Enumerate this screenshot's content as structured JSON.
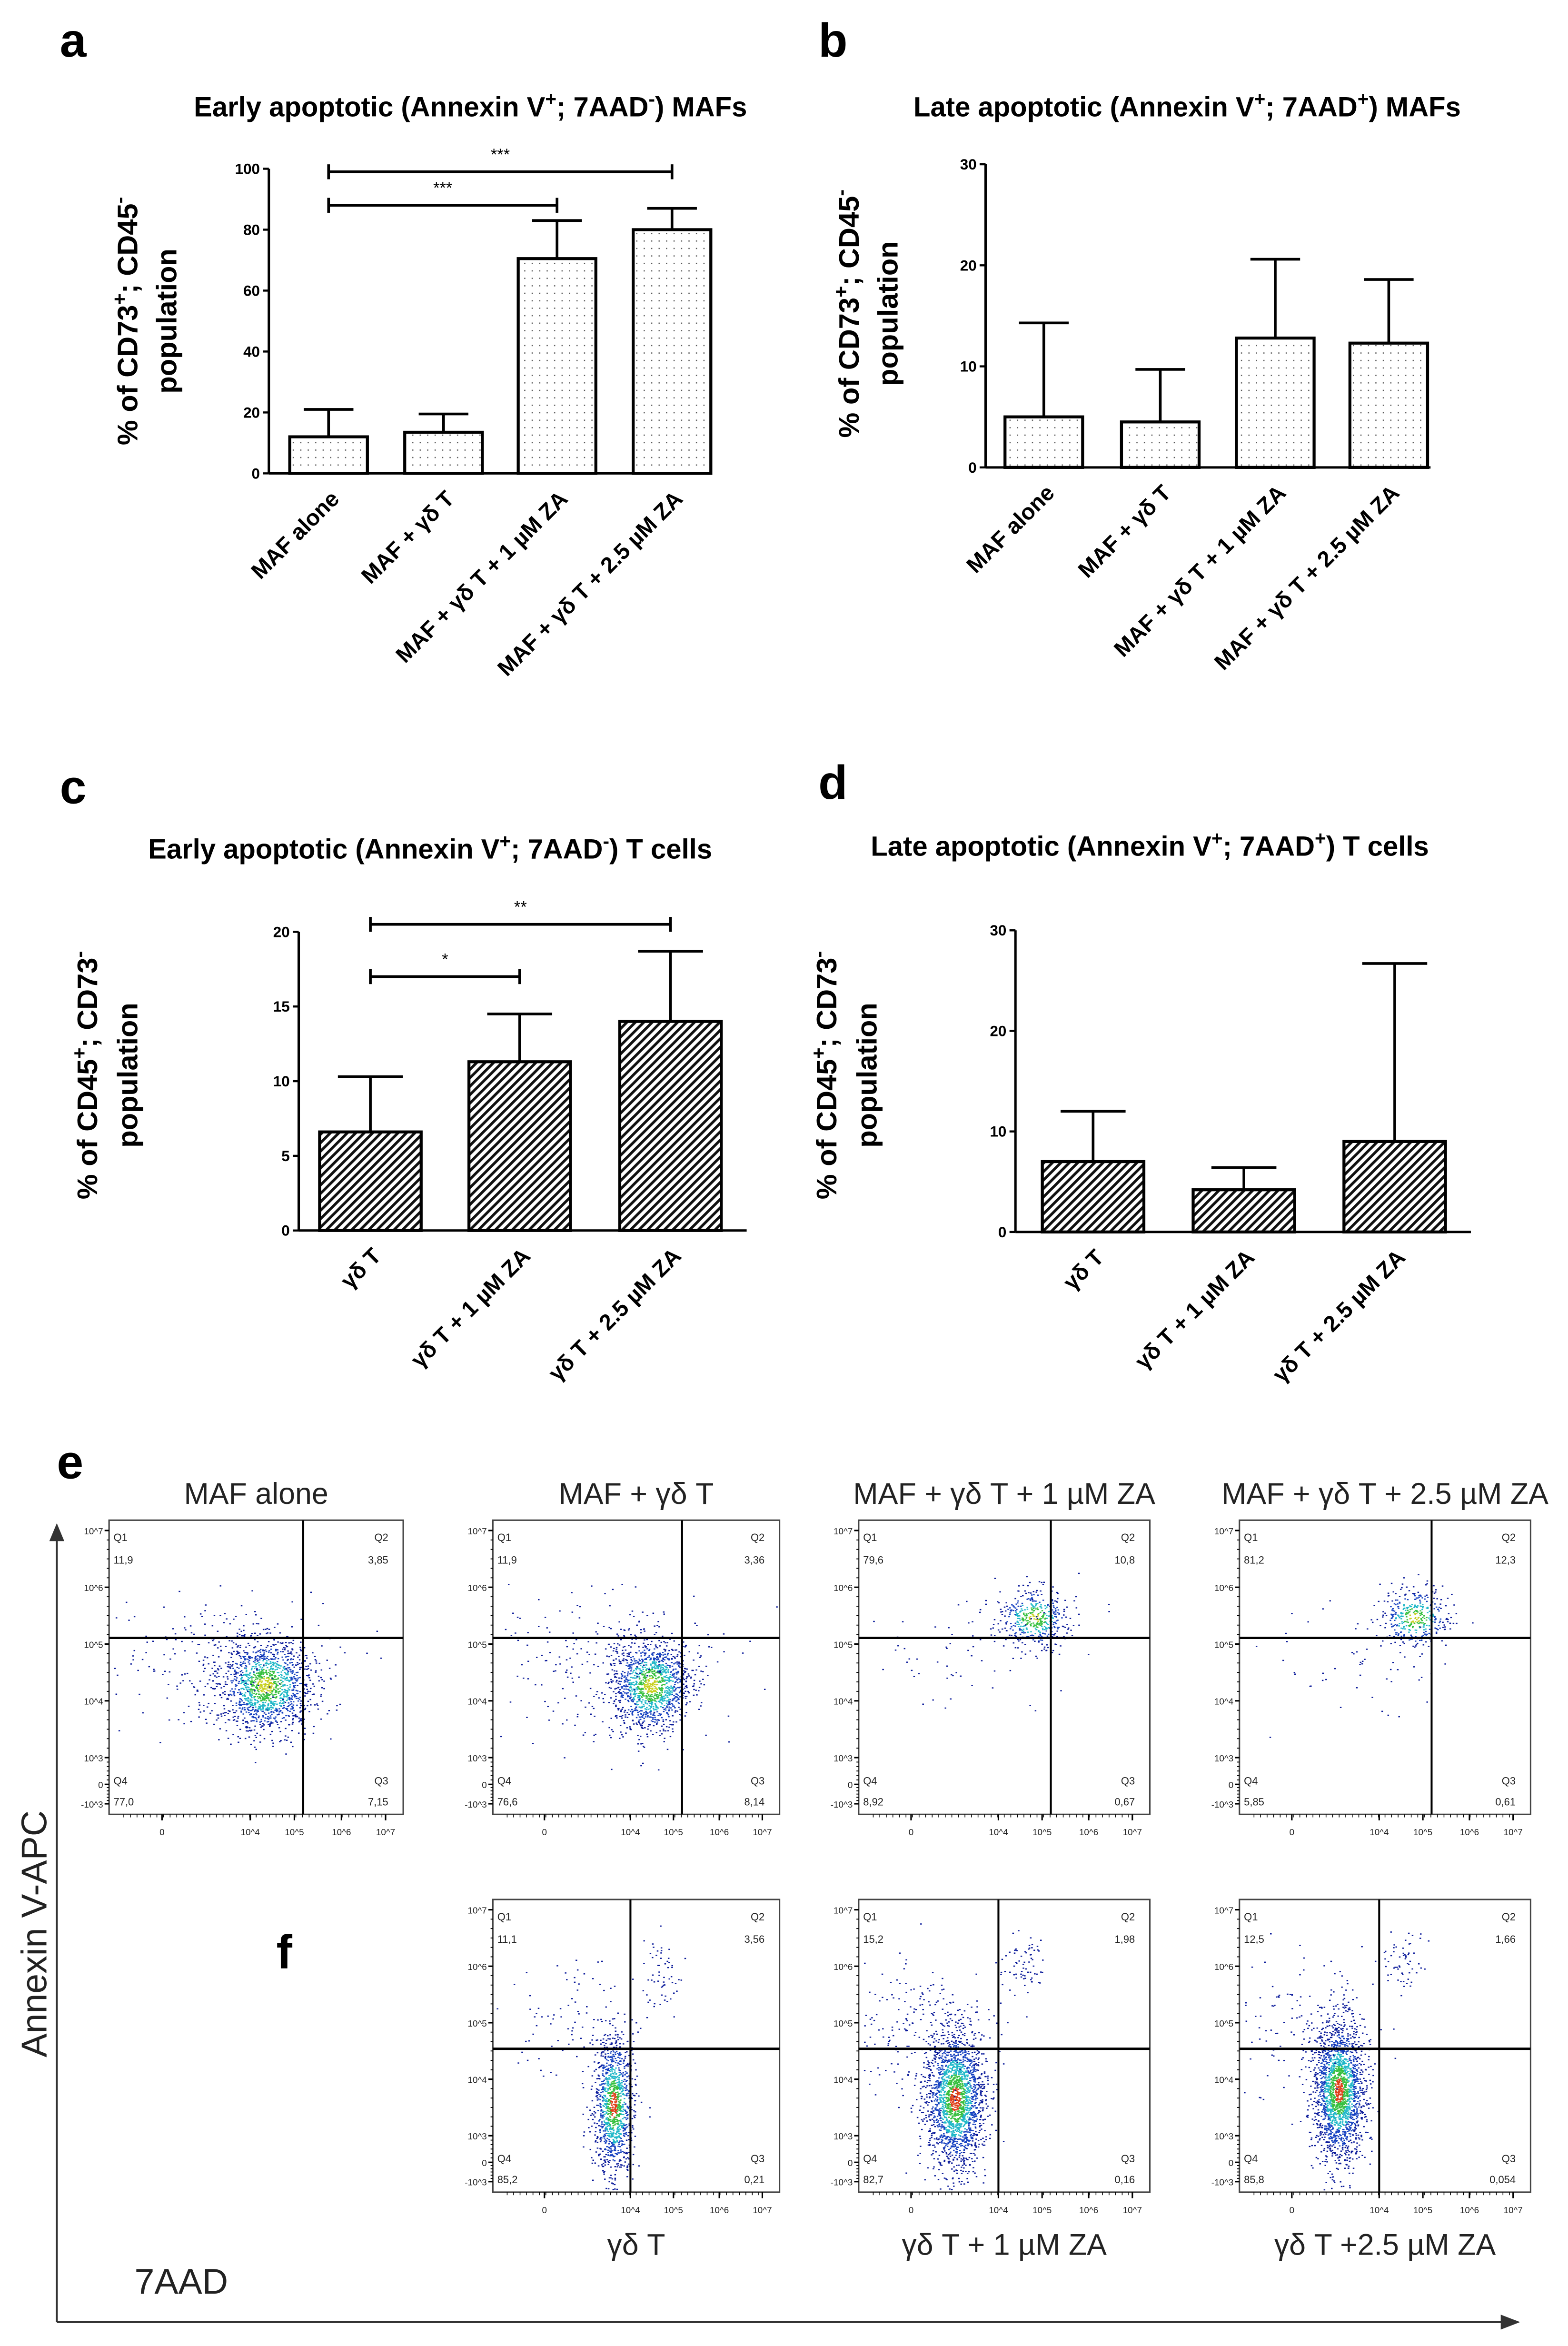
{
  "chart_data": [
    {
      "panel": "a",
      "type": "bar",
      "title": [
        {
          "t": "Early apoptotic (Annexin V"
        },
        {
          "t": "+",
          "sup": true
        },
        {
          "t": "; 7AAD"
        },
        {
          "t": "-",
          "sup": true
        },
        {
          "t": ") MAFs"
        }
      ],
      "ylabel": [
        [
          {
            "t": "% of  CD73"
          },
          {
            "t": "+",
            "sup": true
          },
          {
            "t": "; CD45"
          },
          {
            "t": "-",
            "sup": true
          }
        ],
        [
          {
            "t": "population"
          }
        ]
      ],
      "categories": [
        "MAF alone",
        "MAF + γδ T",
        "MAF + γδ T + 1 µM ZA",
        "MAF + γδ T + 2.5 µM ZA"
      ],
      "values": [
        12,
        13.5,
        70.5,
        80
      ],
      "error_upper": [
        21,
        19.5,
        83,
        87
      ],
      "ylim": [
        0,
        100
      ],
      "yticks": [
        "0",
        "20",
        "40",
        "60",
        "80",
        "100"
      ],
      "pattern": "dots",
      "significance": [
        {
          "from": 0,
          "to": 2,
          "label": "***",
          "level": 88
        },
        {
          "from": 0,
          "to": 3,
          "label": "***",
          "level": 99
        }
      ]
    },
    {
      "panel": "b",
      "type": "bar",
      "title": [
        {
          "t": "Late apoptotic (Annexin V"
        },
        {
          "t": "+",
          "sup": true
        },
        {
          "t": "; 7AAD"
        },
        {
          "t": "+",
          "sup": true
        },
        {
          "t": ") MAFs"
        }
      ],
      "ylabel": [
        [
          {
            "t": "% of  CD73"
          },
          {
            "t": "+",
            "sup": true
          },
          {
            "t": "; CD45"
          },
          {
            "t": "-",
            "sup": true
          }
        ],
        [
          {
            "t": "population"
          }
        ]
      ],
      "categories": [
        "MAF alone",
        "MAF + γδ T",
        "MAF + γδ T + 1 µM ZA",
        "MAF + γδ T + 2.5 µM ZA"
      ],
      "values": [
        5,
        4.5,
        12.8,
        12.3
      ],
      "error_upper": [
        14.3,
        9.7,
        20.6,
        18.6
      ],
      "ylim": [
        0,
        30
      ],
      "yticks": [
        "0",
        "10",
        "20",
        "30"
      ],
      "pattern": "dots",
      "significance": []
    },
    {
      "panel": "c",
      "type": "bar",
      "title": [
        {
          "t": "Early apoptotic (Annexin  V"
        },
        {
          "t": "+",
          "sup": true
        },
        {
          "t": "; 7AAD"
        },
        {
          "t": "-",
          "sup": true
        },
        {
          "t": ") T cells"
        }
      ],
      "ylabel": [
        [
          {
            "t": "% of CD45"
          },
          {
            "t": "+",
            "sup": true
          },
          {
            "t": "; CD73"
          },
          {
            "t": "-",
            "sup": true
          }
        ],
        [
          {
            "t": "population"
          }
        ]
      ],
      "categories": [
        "γδ T",
        "γδ T + 1 µM ZA",
        "γδ T + 2.5 µM ZA"
      ],
      "values": [
        6.6,
        11.3,
        14
      ],
      "error_upper": [
        10.3,
        14.5,
        18.7
      ],
      "ylim": [
        0,
        20
      ],
      "yticks": [
        "0",
        "5",
        "10",
        "15",
        "20"
      ],
      "pattern": "hatch",
      "significance": [
        {
          "from": 0,
          "to": 1,
          "label": "*",
          "level": 17
        },
        {
          "from": 0,
          "to": 2,
          "label": "**",
          "level": 20.5
        }
      ]
    },
    {
      "panel": "d",
      "type": "bar",
      "title": [
        {
          "t": "Late apoptotic (Annexin V"
        },
        {
          "t": "+",
          "sup": true
        },
        {
          "t": "; 7AAD"
        },
        {
          "t": "+",
          "sup": true
        },
        {
          "t": ") T cells"
        }
      ],
      "ylabel": [
        [
          {
            "t": "% of CD45"
          },
          {
            "t": "+",
            "sup": true
          },
          {
            "t": "; CD73"
          },
          {
            "t": "-",
            "sup": true
          }
        ],
        [
          {
            "t": "population"
          }
        ]
      ],
      "categories": [
        "γδ T",
        "γδ T + 1 µM ZA",
        "γδ T + 2.5 µM ZA"
      ],
      "values": [
        7,
        4.2,
        9
      ],
      "error_upper": [
        12,
        6.4,
        26.7
      ],
      "ylim": [
        0,
        30
      ],
      "yticks": [
        "0",
        "10",
        "20",
        "30"
      ],
      "pattern": "hatch",
      "significance": []
    }
  ],
  "flow": {
    "panel_e": "e",
    "panel_f": "f",
    "y_axis_label": "Annexin V-APC",
    "x_axis_label": "7AAD",
    "y_ticks": [
      "10^7",
      "10^6",
      "10^5",
      "10^4",
      "10^3",
      "0",
      "-10^3"
    ],
    "x_ticks": [
      "0",
      "10^4",
      "10^5",
      "10^6",
      "10^7"
    ],
    "quadrant_names": [
      "Q1",
      "Q2",
      "Q3",
      "Q4"
    ],
    "plots": [
      {
        "row": "e",
        "title": "MAF alone",
        "q1": "11,9",
        "q2": "3,85",
        "q3": "7,15",
        "q4": "77,0"
      },
      {
        "row": "e",
        "title": "MAF + γδ T",
        "q1": "11,9",
        "q2": "3,36",
        "q3": "8,14",
        "q4": "76,6"
      },
      {
        "row": "e",
        "title": "MAF + γδ T + 1 µM ZA",
        "q1": "79,6",
        "q2": "10,8",
        "q3": "0,67",
        "q4": "8,92"
      },
      {
        "row": "e",
        "title": "MAF + γδ T + 2.5 µM ZA",
        "q1": "81,2",
        "q2": "12,3",
        "q3": "0,61",
        "q4": "5,85"
      },
      {
        "row": "f",
        "title": "γδ T",
        "q1": "11,1",
        "q2": "3,56",
        "q3": "0,21",
        "q4": "85,2"
      },
      {
        "row": "f",
        "title": "γδ T + 1 µM ZA",
        "q1": "15,2",
        "q2": "1,98",
        "q3": "0,16",
        "q4": "82,7"
      },
      {
        "row": "f",
        "title": "γδ T +2.5 µM ZA",
        "q1": "12,5",
        "q2": "1,66",
        "q3": "0,054",
        "q4": "85,8"
      }
    ]
  }
}
